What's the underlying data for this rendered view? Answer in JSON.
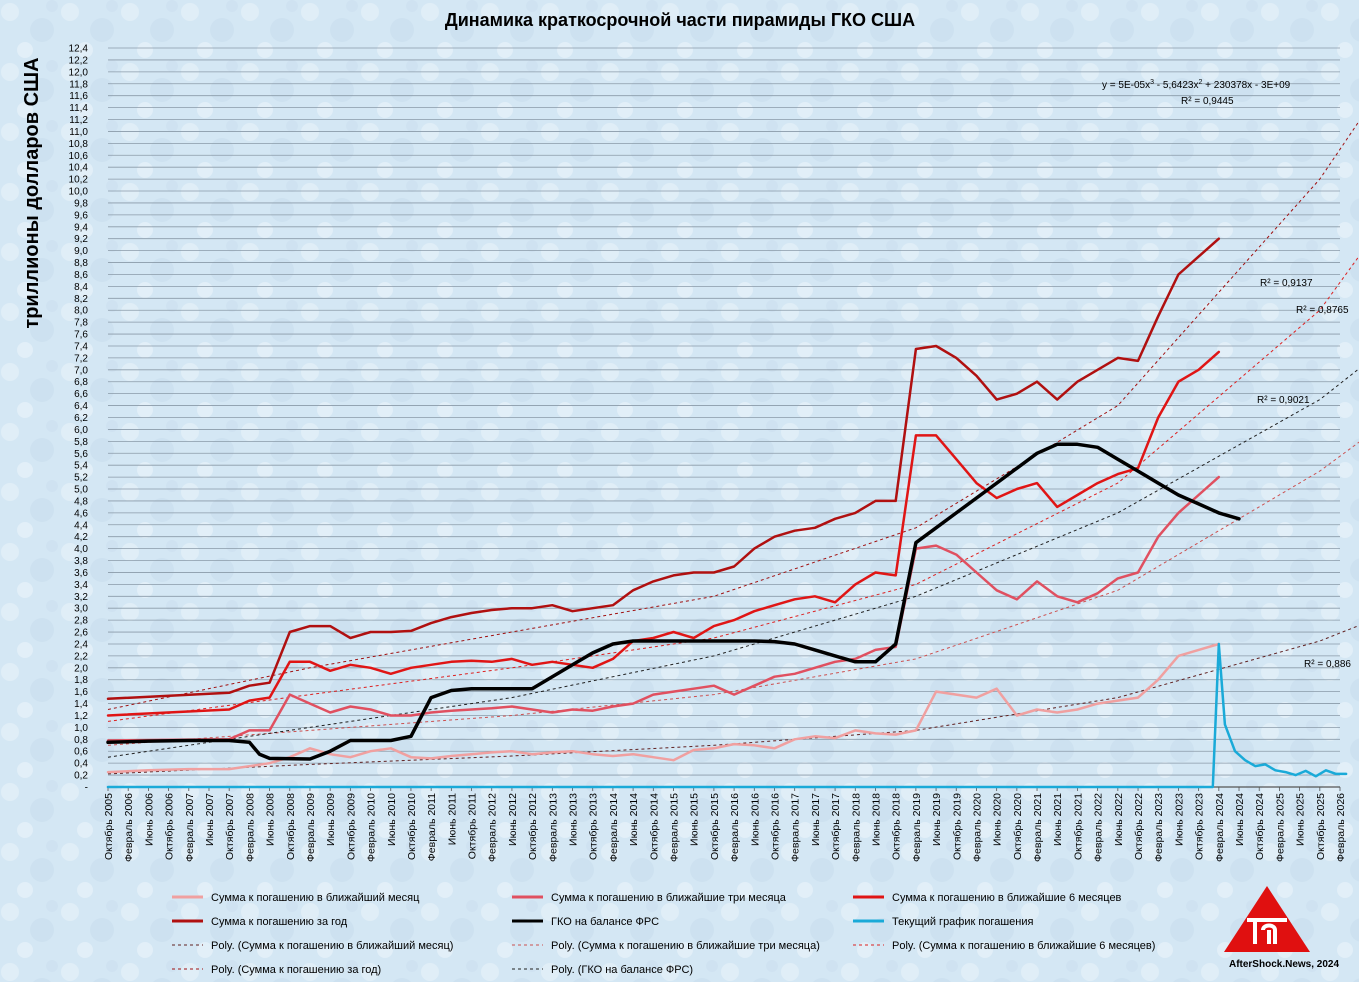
{
  "chart_data": {
    "type": "line",
    "title": "Динамика краткосрочной части пирамиды ГКО США",
    "ylabel": "триллионы долларов США",
    "xlabel": "",
    "ylim": [
      0,
      12.4
    ],
    "ytick_step": 0.2,
    "grid": true,
    "legend_position": "bottom",
    "x_tick_labels": [
      "Октябрь 2005",
      "Февраль 2006",
      "Июнь 2006",
      "Октябрь 2006",
      "Февраль 2007",
      "Июнь 2007",
      "Октябрь 2007",
      "Февраль 2008",
      "Июнь 2008",
      "Октябрь 2008",
      "Февраль 2009",
      "Июнь 2009",
      "Октябрь 2009",
      "Февраль 2010",
      "Июнь 2010",
      "Октябрь 2010",
      "Февраль 2011",
      "Июнь 2011",
      "Октябрь 2011",
      "Февраль 2012",
      "Июнь 2012",
      "Октябрь 2012",
      "Февраль 2013",
      "Июнь 2013",
      "Октябрь 2013",
      "Февраль 2014",
      "Июнь 2014",
      "Октябрь 2014",
      "Февраль 2015",
      "Июнь 2015",
      "Октябрь 2015",
      "Февраль 2016",
      "Июнь 2016",
      "Октябрь 2016",
      "Февраль 2017",
      "Июнь 2017",
      "Октябрь 2017",
      "Февраль 2018",
      "Июнь 2018",
      "Октябрь 2018",
      "Февраль 2019",
      "Июнь 2019",
      "Октябрь 2019",
      "Февраль 2020",
      "Июнь 2020",
      "Октябрь 2020",
      "Февраль 2021",
      "Июнь 2021",
      "Октябрь 2021",
      "Февраль 2022",
      "Июнь 2022",
      "Октябрь 2022",
      "Февраль 2023",
      "Июнь 2023",
      "Октябрь 2023",
      "Февраль 2024",
      "Июнь 2024",
      "Октябрь 2024",
      "Февраль 2025",
      "Июнь 2025",
      "Октябрь 2025",
      "Февраль 2026"
    ],
    "x_index_note": "x values are indexes into x_tick_labels (4-month steps)",
    "series": [
      {
        "name": "Сумма к погашению в ближайший месяц",
        "color": "#f0a0a0",
        "width": 2.5,
        "x": [
          0,
          2,
          4,
          6,
          8,
          9,
          10,
          11,
          12,
          13,
          14,
          15,
          16,
          17,
          18,
          19,
          20,
          21,
          22,
          23,
          24,
          25,
          26,
          27,
          28,
          29,
          30,
          31,
          32,
          33,
          34,
          35,
          36,
          37,
          38,
          39,
          40,
          41,
          42,
          43,
          44,
          45,
          46,
          47,
          48,
          49,
          50,
          51,
          52,
          53,
          54,
          55
        ],
        "y": [
          0.25,
          0.28,
          0.3,
          0.3,
          0.4,
          0.5,
          0.65,
          0.55,
          0.5,
          0.6,
          0.65,
          0.5,
          0.48,
          0.52,
          0.55,
          0.58,
          0.6,
          0.55,
          0.58,
          0.6,
          0.55,
          0.52,
          0.55,
          0.5,
          0.45,
          0.62,
          0.65,
          0.72,
          0.7,
          0.65,
          0.8,
          0.85,
          0.82,
          0.95,
          0.9,
          0.88,
          0.95,
          1.6,
          1.55,
          1.5,
          1.65,
          1.2,
          1.3,
          1.25,
          1.3,
          1.4,
          1.45,
          1.5,
          1.8,
          2.2,
          2.3,
          2.4
        ]
      },
      {
        "name": "Сумма к погашению в ближайшие три месяца",
        "color": "#e05060",
        "width": 2.5,
        "x": [
          0,
          6,
          7,
          8,
          9,
          10,
          11,
          12,
          13,
          14,
          15,
          16,
          17,
          18,
          19,
          20,
          21,
          22,
          23,
          24,
          25,
          26,
          27,
          28,
          29,
          30,
          31,
          32,
          33,
          34,
          35,
          36,
          37,
          38,
          39,
          40,
          41,
          42,
          43,
          44,
          45,
          46,
          47,
          48,
          49,
          50,
          51,
          52,
          53,
          54,
          55
        ],
        "y": [
          0.78,
          0.8,
          0.95,
          0.95,
          1.55,
          1.4,
          1.25,
          1.35,
          1.3,
          1.2,
          1.2,
          1.25,
          1.28,
          1.3,
          1.32,
          1.35,
          1.3,
          1.25,
          1.3,
          1.28,
          1.35,
          1.4,
          1.55,
          1.6,
          1.65,
          1.7,
          1.55,
          1.7,
          1.85,
          1.9,
          2.0,
          2.1,
          2.15,
          2.3,
          2.35,
          4.0,
          4.05,
          3.9,
          3.6,
          3.3,
          3.15,
          3.45,
          3.2,
          3.1,
          3.25,
          3.5,
          3.6,
          4.2,
          4.6,
          4.9,
          5.2
        ]
      },
      {
        "name": "Сумма к погашению в ближайшие 6 месяцев",
        "color": "#e01515",
        "width": 2.5,
        "x": [
          0,
          6,
          7,
          8,
          9,
          10,
          11,
          12,
          13,
          14,
          15,
          16,
          17,
          18,
          19,
          20,
          21,
          22,
          23,
          24,
          25,
          26,
          27,
          28,
          29,
          30,
          31,
          32,
          33,
          34,
          35,
          36,
          37,
          38,
          39,
          40,
          41,
          42,
          43,
          44,
          45,
          46,
          47,
          48,
          49,
          50,
          51,
          52,
          53,
          54,
          55
        ],
        "y": [
          1.2,
          1.3,
          1.45,
          1.5,
          2.1,
          2.1,
          1.95,
          2.05,
          2.0,
          1.9,
          2.0,
          2.05,
          2.1,
          2.12,
          2.1,
          2.15,
          2.05,
          2.1,
          2.05,
          2.0,
          2.15,
          2.45,
          2.5,
          2.6,
          2.5,
          2.7,
          2.8,
          2.95,
          3.05,
          3.15,
          3.2,
          3.1,
          3.4,
          3.6,
          3.55,
          5.9,
          5.9,
          5.5,
          5.1,
          4.85,
          5.0,
          5.1,
          4.7,
          4.9,
          5.1,
          5.25,
          5.35,
          6.2,
          6.8,
          7.0,
          7.3
        ]
      },
      {
        "name": "Сумма к погашению за год",
        "color": "#b01010",
        "width": 2.5,
        "x": [
          0,
          6,
          7,
          8,
          9,
          10,
          11,
          12,
          13,
          14,
          15,
          16,
          17,
          18,
          19,
          20,
          21,
          22,
          23,
          24,
          25,
          26,
          27,
          28,
          29,
          30,
          31,
          32,
          33,
          34,
          35,
          36,
          37,
          38,
          39,
          40,
          41,
          42,
          43,
          44,
          45,
          46,
          47,
          48,
          49,
          50,
          51,
          52,
          53,
          54,
          55
        ],
        "y": [
          1.48,
          1.58,
          1.7,
          1.75,
          2.6,
          2.7,
          2.7,
          2.5,
          2.6,
          2.6,
          2.62,
          2.75,
          2.85,
          2.92,
          2.97,
          3.0,
          3.0,
          3.05,
          2.95,
          3.0,
          3.05,
          3.3,
          3.45,
          3.55,
          3.6,
          3.6,
          3.7,
          4.0,
          4.2,
          4.3,
          4.35,
          4.5,
          4.6,
          4.8,
          4.8,
          7.35,
          7.4,
          7.2,
          6.9,
          6.5,
          6.6,
          6.8,
          6.5,
          6.8,
          7.0,
          7.2,
          7.15,
          7.9,
          8.6,
          8.9,
          9.2
        ]
      },
      {
        "name": "ГКО на балансе ФРС",
        "color": "#000000",
        "width": 3.5,
        "x": [
          0,
          2,
          4,
          6,
          7,
          7.5,
          8,
          10,
          11,
          12,
          13,
          14,
          15,
          16,
          17,
          18,
          19,
          20,
          21,
          22,
          23,
          24,
          25,
          26,
          27,
          28,
          29,
          30,
          31,
          32,
          33,
          34,
          35,
          36,
          37,
          38,
          39,
          40,
          41,
          42,
          43,
          44,
          45,
          46,
          47,
          48,
          49,
          50,
          51,
          52,
          53,
          54,
          55,
          56
        ],
        "y": [
          0.75,
          0.77,
          0.78,
          0.78,
          0.75,
          0.55,
          0.48,
          0.47,
          0.6,
          0.78,
          0.78,
          0.78,
          0.85,
          1.5,
          1.62,
          1.65,
          1.65,
          1.65,
          1.65,
          1.85,
          2.05,
          2.25,
          2.4,
          2.45,
          2.45,
          2.45,
          2.45,
          2.45,
          2.45,
          2.45,
          2.44,
          2.4,
          2.3,
          2.2,
          2.1,
          2.1,
          2.4,
          4.1,
          4.35,
          4.6,
          4.85,
          5.1,
          5.35,
          5.6,
          5.75,
          5.75,
          5.7,
          5.5,
          5.3,
          5.1,
          4.9,
          4.75,
          4.6,
          4.5
        ]
      },
      {
        "name": "Текущий график погашения",
        "color": "#1aaad8",
        "width": 2.5,
        "x": [
          0,
          54.7,
          55.0,
          55.3,
          55.8,
          56.3,
          56.8,
          57.3,
          57.8,
          58.3,
          58.8,
          59.3,
          59.8,
          60.3,
          60.8,
          61.3
        ],
        "y": [
          0,
          0,
          2.4,
          1.05,
          0.6,
          0.45,
          0.35,
          0.38,
          0.28,
          0.25,
          0.2,
          0.27,
          0.18,
          0.28,
          0.22,
          0.22
        ]
      }
    ],
    "trendlines": [
      {
        "name": "Poly. (Сумма к погашению в ближайший месяц)",
        "color": "#602020",
        "label": "R² = 0,886",
        "x": [
          0,
          10,
          20,
          30,
          40,
          50,
          60,
          63
        ],
        "y": [
          0.22,
          0.38,
          0.52,
          0.7,
          0.95,
          1.5,
          2.45,
          2.85
        ]
      },
      {
        "name": "Poly. (Сумма к погашению в ближайшие три месяца)",
        "color": "#cc5050",
        "label": "R² = 0,8765",
        "x": [
          0,
          10,
          20,
          30,
          40,
          50,
          60,
          63
        ],
        "y": [
          0.7,
          0.95,
          1.2,
          1.55,
          2.15,
          3.3,
          5.3,
          6.05
        ]
      },
      {
        "name": "Poly. (Сумма к погашению в ближайшие 6 месяцев)",
        "color": "#dd2020",
        "label": "R² = 0,9137",
        "x": [
          0,
          10,
          20,
          30,
          40,
          50,
          60,
          63
        ],
        "y": [
          1.1,
          1.55,
          2.0,
          2.5,
          3.4,
          5.1,
          8.0,
          9.4
        ]
      },
      {
        "name": "Poly. (Сумма к погашению за год)",
        "color": "#a01010",
        "label": "R² = 0,9445",
        "x": [
          0,
          10,
          20,
          30,
          40,
          50,
          60,
          63
        ],
        "y": [
          1.3,
          2.0,
          2.6,
          3.2,
          4.35,
          6.4,
          10.2,
          11.7
        ]
      },
      {
        "name": "Poly. (ГКО на балансе ФРС)",
        "color": "#202020",
        "label": "R² = 0,9021",
        "x": [
          0,
          10,
          20,
          30,
          40,
          50,
          60,
          63
        ],
        "y": [
          0.5,
          1.0,
          1.5,
          2.2,
          3.2,
          4.6,
          6.5,
          7.3
        ]
      }
    ],
    "annotations": {
      "equation_main": "y = 5E-05x",
      "equation_exp1": "3",
      "equation_mid": " - 5,6423x",
      "equation_exp2": "2",
      "equation_tail": " + 230378x - 3E+09"
    },
    "legend": [
      {
        "label": "Сумма к погашению в ближайший месяц",
        "color": "#f0a0a0",
        "style": "solid"
      },
      {
        "label": "Сумма к погашению в ближайшие три месяца",
        "color": "#e05060",
        "style": "solid"
      },
      {
        "label": "Сумма к погашению в ближайшие 6 месяцев",
        "color": "#e01515",
        "style": "solid"
      },
      {
        "label": "Сумма к погашению за год",
        "color": "#b01010",
        "style": "solid"
      },
      {
        "label": "ГКО на балансе ФРС",
        "color": "#000000",
        "style": "solid"
      },
      {
        "label": "Текущий график погашения",
        "color": "#1aaad8",
        "style": "solid"
      },
      {
        "label": "Poly. (Сумма к погашению в ближайший месяц)",
        "color": "#602020",
        "style": "dashed"
      },
      {
        "label": "Poly. (Сумма к погашению в ближайшие три месяца)",
        "color": "#cc5050",
        "style": "dashed"
      },
      {
        "label": "Poly. (Сумма к погашению в ближайшие 6 месяцев)",
        "color": "#dd2020",
        "style": "dashed"
      },
      {
        "label": "Poly. (Сумма к погашению за год)",
        "color": "#a01010",
        "style": "dashed"
      },
      {
        "label": "Poly. (ГКО на балансе ФРС)",
        "color": "#202020",
        "style": "dashed"
      }
    ]
  },
  "logo": {
    "text": "AfterShock.News, 2024",
    "color": "#e01010"
  }
}
